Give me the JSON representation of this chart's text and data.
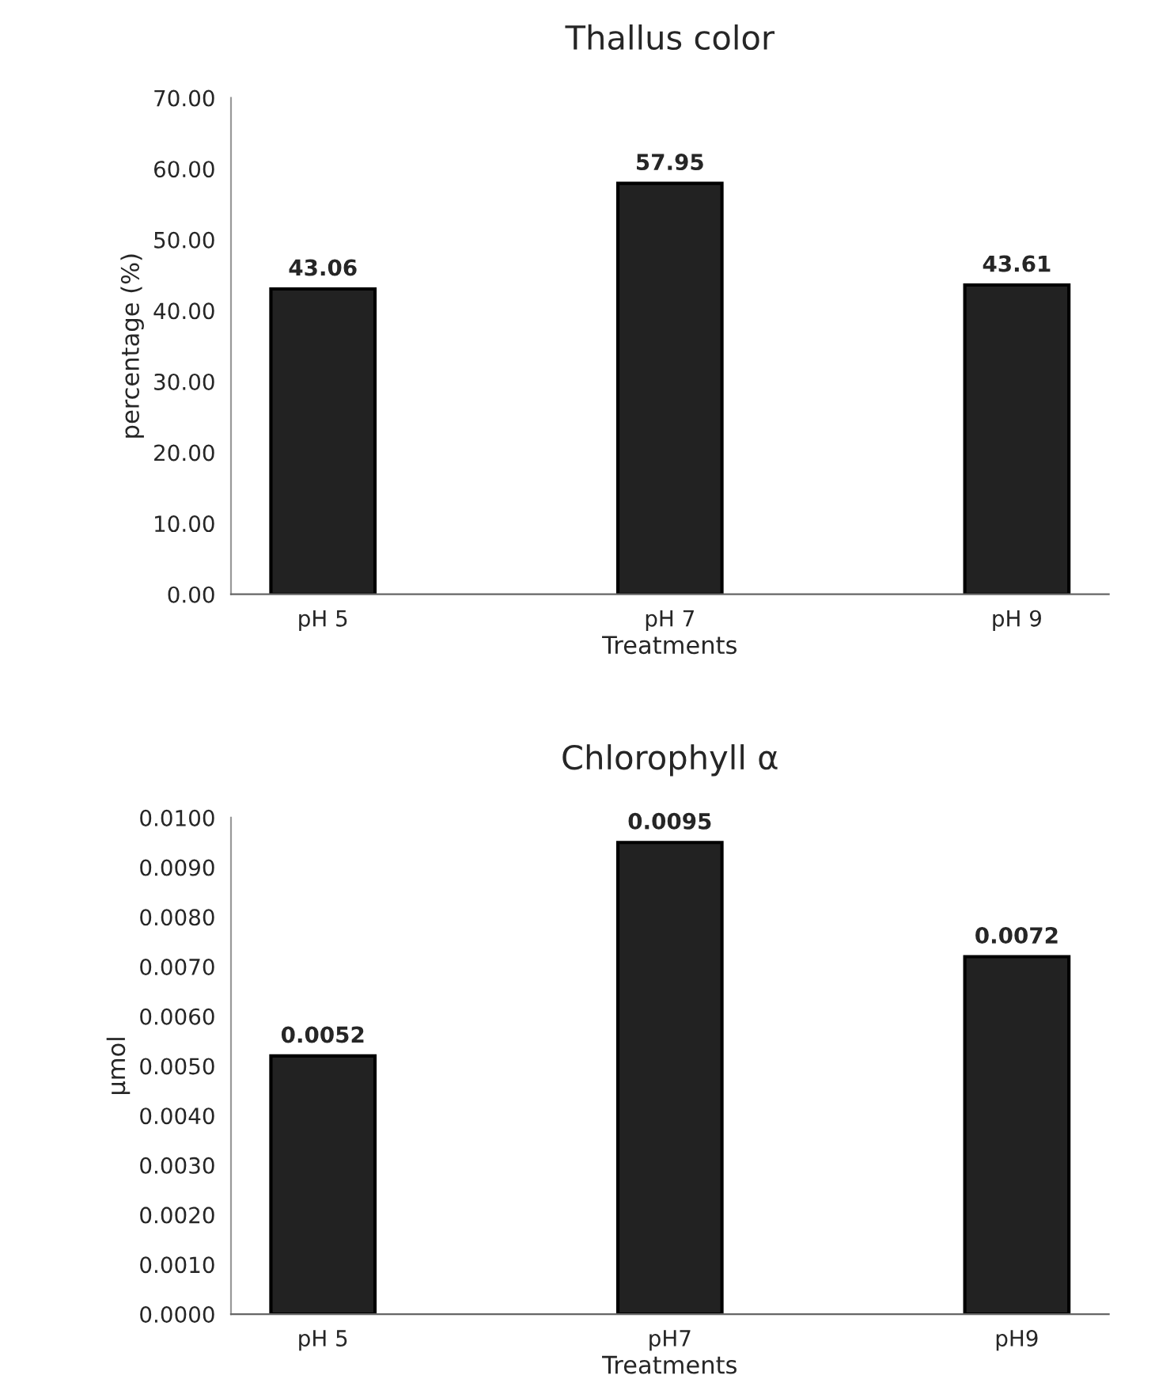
{
  "chart_data": [
    {
      "type": "bar",
      "title": "Thallus color",
      "xlabel": "Treatments",
      "ylabel": "percentage (%)",
      "categories": [
        "pH 5",
        "pH 7",
        "pH 9"
      ],
      "values": [
        43.06,
        57.95,
        43.61
      ],
      "color": "#222222",
      "ylim": [
        0,
        70
      ],
      "yticks": [
        {
          "value": 0,
          "label": "0.00"
        },
        {
          "value": 10,
          "label": "10.00"
        },
        {
          "value": 20,
          "label": "20.00"
        },
        {
          "value": 30,
          "label": "30.00"
        },
        {
          "value": 40,
          "label": "40.00"
        },
        {
          "value": 50,
          "label": "50.00"
        },
        {
          "value": 60,
          "label": "60.00"
        },
        {
          "value": 70,
          "label": "70.00"
        }
      ],
      "data_labels": true,
      "grid": false,
      "legend": false
    },
    {
      "type": "bar",
      "title": "Chlorophyll α",
      "xlabel": "Treatments",
      "ylabel": "µmol",
      "categories": [
        "pH 5",
        "pH7",
        "pH9"
      ],
      "values": [
        0.0052,
        0.0095,
        0.0072
      ],
      "color": "#222222",
      "ylim": [
        0,
        0.01
      ],
      "yticks": [
        {
          "value": 0,
          "label": "0.0000"
        },
        {
          "value": 0.001,
          "label": "0.0010"
        },
        {
          "value": 0.002,
          "label": "0.0020"
        },
        {
          "value": 0.003,
          "label": "0.0030"
        },
        {
          "value": 0.004,
          "label": "0.0040"
        },
        {
          "value": 0.005,
          "label": "0.0050"
        },
        {
          "value": 0.006,
          "label": "0.0060"
        },
        {
          "value": 0.007,
          "label": "0.0070"
        },
        {
          "value": 0.008,
          "label": "0.0080"
        },
        {
          "value": 0.009,
          "label": "0.0090"
        },
        {
          "value": 0.01,
          "label": "0.0100"
        }
      ],
      "data_labels": true,
      "grid": false,
      "legend": false
    }
  ]
}
